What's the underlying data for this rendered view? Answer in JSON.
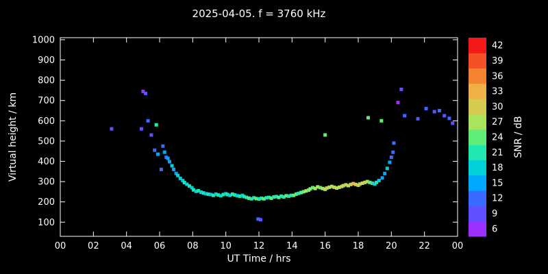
{
  "chart_data": {
    "type": "scatter",
    "title": "2025-04-05. f = 3760 kHz",
    "xlabel": "UT Time / hrs",
    "ylabel": "Virtual height / km",
    "xlim": [
      0,
      24
    ],
    "ylim": [
      30,
      1010
    ],
    "grid": false,
    "background": "#000000",
    "axis_color": "#ffffff",
    "x_ticks": [
      0,
      2,
      4,
      6,
      8,
      10,
      12,
      14,
      16,
      18,
      20,
      22,
      24
    ],
    "x_tick_labels": [
      "00",
      "02",
      "04",
      "06",
      "08",
      "10",
      "12",
      "14",
      "16",
      "18",
      "20",
      "22",
      "00"
    ],
    "y_ticks": [
      100,
      200,
      300,
      400,
      500,
      600,
      700,
      800,
      900,
      1000
    ],
    "colorbar": {
      "label": "SNR / dB",
      "tick_values": [
        6,
        9,
        12,
        15,
        18,
        21,
        24,
        27,
        30,
        33,
        36,
        39,
        42
      ],
      "tick_labels": [
        "6",
        "9",
        "12",
        "15",
        "18",
        "21",
        "24",
        "27",
        "30",
        "33",
        "36",
        "39",
        "42"
      ],
      "colors": [
        "#9b30ff",
        "#6050ff",
        "#3a6aff",
        "#00a8ff",
        "#00d0d8",
        "#20e8b0",
        "#60ee78",
        "#a8e45c",
        "#d4cc50",
        "#f0b048",
        "#f58432",
        "#f55028",
        "#f51818"
      ]
    },
    "points_format": "[ut_hour, virtual_height_km, snr_db]",
    "points": [
      [
        3.1,
        560,
        9
      ],
      [
        4.9,
        560,
        9
      ],
      [
        5.0,
        745,
        6
      ],
      [
        5.15,
        735,
        9
      ],
      [
        5.3,
        600,
        12
      ],
      [
        5.5,
        530,
        9
      ],
      [
        5.8,
        580,
        21
      ],
      [
        5.7,
        455,
        12
      ],
      [
        5.9,
        435,
        15
      ],
      [
        6.1,
        360,
        12
      ],
      [
        6.2,
        475,
        12
      ],
      [
        6.3,
        445,
        15
      ],
      [
        6.4,
        420,
        12
      ],
      [
        6.5,
        415,
        15
      ],
      [
        6.6,
        398,
        15
      ],
      [
        6.75,
        378,
        18
      ],
      [
        6.85,
        360,
        15
      ],
      [
        7.0,
        340,
        15
      ],
      [
        7.1,
        330,
        18
      ],
      [
        7.25,
        316,
        18
      ],
      [
        7.4,
        305,
        18
      ],
      [
        7.5,
        295,
        21
      ],
      [
        7.65,
        287,
        18
      ],
      [
        7.8,
        278,
        21
      ],
      [
        7.95,
        270,
        18
      ],
      [
        8.05,
        259,
        21
      ],
      [
        8.2,
        252,
        18
      ],
      [
        8.35,
        255,
        21
      ],
      [
        8.5,
        248,
        18
      ],
      [
        8.65,
        244,
        21
      ],
      [
        8.8,
        240,
        18
      ],
      [
        8.95,
        238,
        21
      ],
      [
        9.1,
        236,
        18
      ],
      [
        9.25,
        232,
        21
      ],
      [
        9.4,
        238,
        18
      ],
      [
        9.55,
        234,
        21
      ],
      [
        9.7,
        230,
        18
      ],
      [
        9.85,
        236,
        21
      ],
      [
        10.0,
        240,
        18
      ],
      [
        10.1,
        236,
        21
      ],
      [
        10.25,
        232,
        18
      ],
      [
        10.4,
        238,
        21
      ],
      [
        10.55,
        234,
        21
      ],
      [
        10.7,
        230,
        18
      ],
      [
        10.85,
        228,
        21
      ],
      [
        11.0,
        232,
        18
      ],
      [
        11.1,
        226,
        21
      ],
      [
        11.25,
        222,
        21
      ],
      [
        11.4,
        218,
        24
      ],
      [
        11.55,
        215,
        21
      ],
      [
        11.7,
        220,
        21
      ],
      [
        11.85,
        216,
        24
      ],
      [
        11.95,
        115,
        12
      ],
      [
        12.1,
        112,
        9
      ],
      [
        12.0,
        214,
        21
      ],
      [
        12.15,
        218,
        21
      ],
      [
        12.3,
        215,
        24
      ],
      [
        12.45,
        220,
        21
      ],
      [
        12.6,
        222,
        21
      ],
      [
        12.75,
        218,
        24
      ],
      [
        12.9,
        224,
        21
      ],
      [
        13.05,
        226,
        21
      ],
      [
        13.2,
        222,
        24
      ],
      [
        13.35,
        228,
        21
      ],
      [
        13.5,
        224,
        21
      ],
      [
        13.65,
        230,
        24
      ],
      [
        13.8,
        228,
        21
      ],
      [
        13.95,
        232,
        21
      ],
      [
        14.1,
        232,
        24
      ],
      [
        14.25,
        238,
        24
      ],
      [
        14.4,
        242,
        21
      ],
      [
        14.55,
        246,
        24
      ],
      [
        14.7,
        250,
        24
      ],
      [
        14.85,
        254,
        27
      ],
      [
        15.0,
        258,
        24
      ],
      [
        15.1,
        264,
        27
      ],
      [
        15.25,
        270,
        24
      ],
      [
        15.4,
        266,
        27
      ],
      [
        15.55,
        274,
        27
      ],
      [
        15.7,
        270,
        24
      ],
      [
        15.85,
        266,
        27
      ],
      [
        16.0,
        262,
        27
      ],
      [
        16.0,
        530,
        24
      ],
      [
        16.1,
        268,
        30
      ],
      [
        16.25,
        272,
        27
      ],
      [
        16.4,
        276,
        27
      ],
      [
        16.55,
        272,
        30
      ],
      [
        16.7,
        268,
        27
      ],
      [
        16.85,
        272,
        27
      ],
      [
        17.0,
        276,
        30
      ],
      [
        17.1,
        280,
        27
      ],
      [
        17.25,
        284,
        30
      ],
      [
        17.4,
        280,
        27
      ],
      [
        17.55,
        286,
        30
      ],
      [
        17.7,
        290,
        33
      ],
      [
        17.85,
        286,
        30
      ],
      [
        18.0,
        282,
        27
      ],
      [
        18.1,
        288,
        30
      ],
      [
        18.25,
        292,
        27
      ],
      [
        18.4,
        296,
        30
      ],
      [
        18.55,
        300,
        27
      ],
      [
        18.6,
        615,
        24
      ],
      [
        18.7,
        296,
        24
      ],
      [
        18.85,
        292,
        21
      ],
      [
        19.0,
        288,
        18
      ],
      [
        19.1,
        296,
        21
      ],
      [
        19.25,
        305,
        18
      ],
      [
        19.4,
        600,
        24
      ],
      [
        19.45,
        318,
        15
      ],
      [
        19.6,
        340,
        15
      ],
      [
        19.75,
        365,
        18
      ],
      [
        19.9,
        395,
        15
      ],
      [
        20.0,
        420,
        12
      ],
      [
        20.1,
        445,
        12
      ],
      [
        20.15,
        490,
        12
      ],
      [
        20.4,
        690,
        6
      ],
      [
        20.6,
        755,
        9
      ],
      [
        20.8,
        625,
        12
      ],
      [
        21.6,
        610,
        9
      ],
      [
        22.1,
        660,
        12
      ],
      [
        22.6,
        645,
        9
      ],
      [
        22.9,
        650,
        12
      ],
      [
        23.2,
        625,
        9
      ],
      [
        23.5,
        612,
        12
      ],
      [
        23.7,
        588,
        9
      ]
    ]
  }
}
